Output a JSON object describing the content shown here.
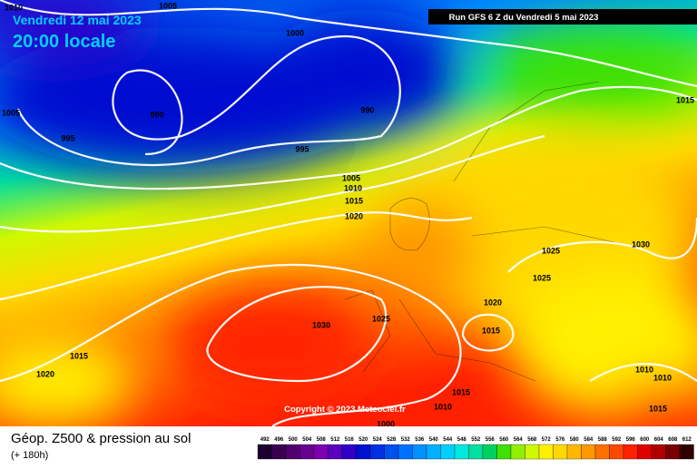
{
  "header": {
    "date": "Vendredi 12 mai 2023",
    "time": "20:00 locale",
    "run": "Run GFS 6 Z du Vendredi 5 mai 2023"
  },
  "map": {
    "isobar_labels": [
      "1010",
      "1005",
      "1000",
      "990",
      "990",
      "1005",
      "995",
      "995",
      "1005",
      "1010",
      "1015",
      "1020",
      "1015",
      "1025",
      "1030",
      "1025",
      "1020",
      "1015",
      "1030",
      "1025",
      "1015",
      "1020",
      "1010",
      "1010",
      "1015",
      "1010",
      "1000",
      "1015"
    ],
    "copyright": "Copyright © 2023 Meteociel.fr"
  },
  "footer": {
    "title": "Géop. Z500 & pression au sol",
    "subtitle": "(+ 180h)"
  },
  "legend": {
    "labels": [
      492,
      496,
      500,
      504,
      508,
      512,
      516,
      520,
      524,
      528,
      532,
      536,
      540,
      544,
      548,
      552,
      556,
      560,
      564,
      568,
      572,
      576,
      580,
      584,
      588,
      592,
      596,
      600,
      604,
      608,
      612
    ],
    "colors": [
      "#1e0030",
      "#3a0050",
      "#500070",
      "#680090",
      "#7a00b0",
      "#5a00c0",
      "#3000c8",
      "#0010d0",
      "#0030e0",
      "#0050f0",
      "#0070ff",
      "#0090ff",
      "#00b0ff",
      "#00d0ff",
      "#00e8e0",
      "#00e0a0",
      "#00d060",
      "#40e000",
      "#90f000",
      "#d0f800",
      "#fff000",
      "#ffd800",
      "#ffb800",
      "#ff9800",
      "#ff7000",
      "#ff4800",
      "#ff2000",
      "#e00000",
      "#b00000",
      "#780000",
      "#300000"
    ]
  }
}
